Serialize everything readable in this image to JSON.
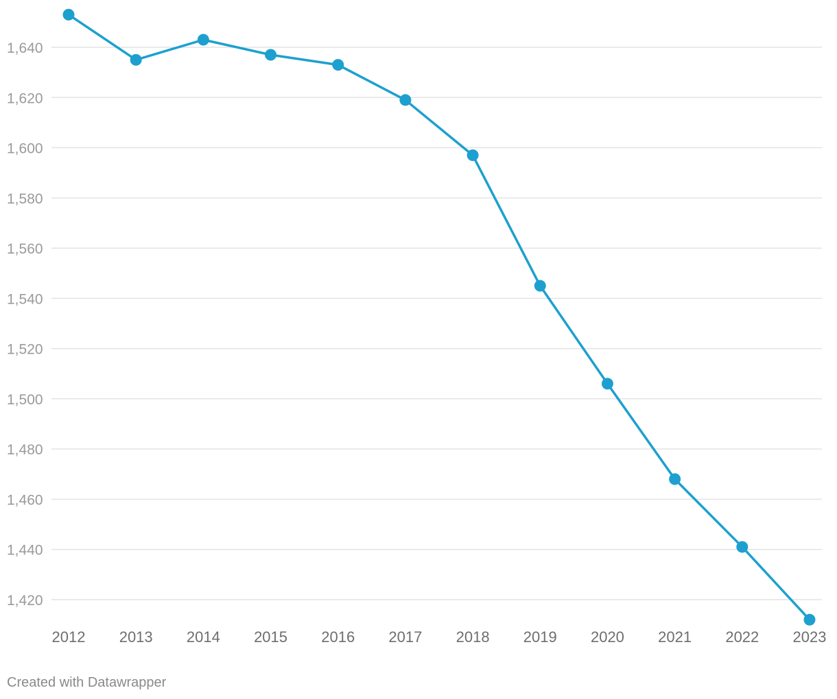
{
  "chart_data": {
    "type": "line",
    "title": "",
    "xlabel": "",
    "ylabel": "",
    "categories": [
      "2012",
      "2013",
      "2014",
      "2015",
      "2016",
      "2017",
      "2018",
      "2019",
      "2020",
      "2021",
      "2022",
      "2023"
    ],
    "series": [
      {
        "name": "",
        "values": [
          1653,
          1635,
          1643,
          1637,
          1633,
          1619,
          1597,
          1545,
          1506,
          1468,
          1441,
          1412
        ]
      }
    ],
    "y_ticks": [
      1420,
      1440,
      1460,
      1480,
      1500,
      1520,
      1540,
      1560,
      1580,
      1600,
      1620,
      1640
    ],
    "y_tick_labels": [
      "1,420",
      "1,440",
      "1,460",
      "1,480",
      "1,500",
      "1,520",
      "1,540",
      "1,560",
      "1,580",
      "1,600",
      "1,620",
      "1,640"
    ],
    "grid": true,
    "colors": {
      "series": "#1da0cf"
    }
  },
  "footer": {
    "credit": "Created with Datawrapper"
  }
}
